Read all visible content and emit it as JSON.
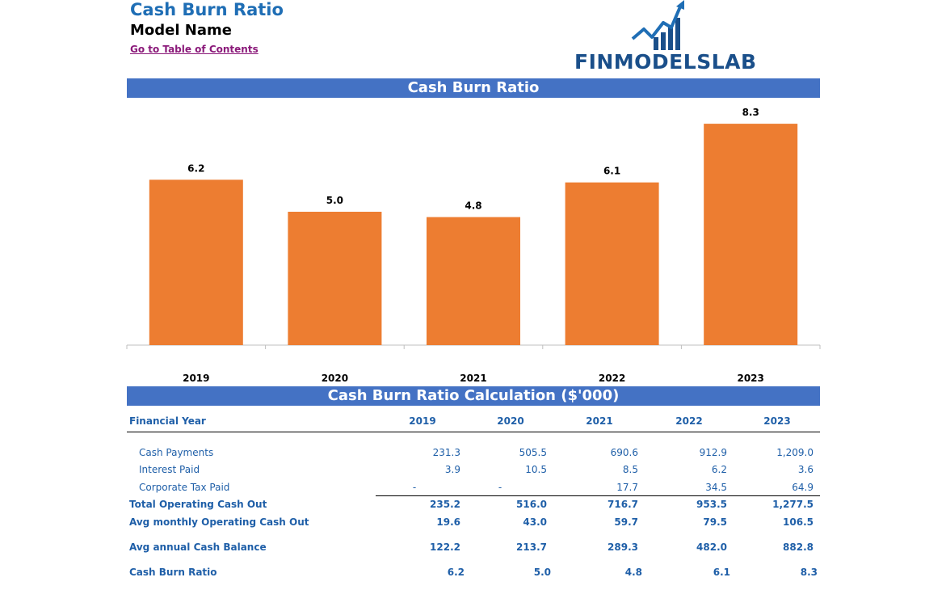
{
  "header": {
    "title": "Cash Burn Ratio",
    "model_name": "Model Name",
    "toc_link": "Go to Table of Contents",
    "logo_text": "FINMODELSLAB"
  },
  "colors": {
    "banner": "#4472c4",
    "bar": "#ed7d31",
    "heading_text": "#1f6eb5",
    "table_text": "#1f5fa8",
    "link": "#8b1a7a"
  },
  "chart_data": {
    "type": "bar",
    "title": "Cash Burn Ratio",
    "categories": [
      "2019",
      "2020",
      "2021",
      "2022",
      "2023"
    ],
    "values": [
      6.2,
      5.0,
      4.8,
      6.1,
      8.3
    ],
    "data_labels": [
      "6.2",
      "5.0",
      "4.8",
      "6.1",
      "8.3"
    ],
    "ylim": [
      0,
      9
    ],
    "grid": false,
    "legend": "none"
  },
  "table": {
    "title": "Cash Burn Ratio Calculation ($'000)",
    "header_label": "Financial Year",
    "years": [
      "2019",
      "2020",
      "2021",
      "2022",
      "2023"
    ],
    "rows": [
      {
        "label": "Cash Payments",
        "values": [
          "231.3",
          "505.5",
          "690.6",
          "912.9",
          "1,209.0"
        ]
      },
      {
        "label": "Interest Paid",
        "values": [
          "3.9",
          "10.5",
          "8.5",
          "6.2",
          "3.6"
        ]
      },
      {
        "label": "Corporate Tax Paid",
        "values": [
          "-",
          "-",
          "17.7",
          "34.5",
          "64.9"
        ]
      },
      {
        "label": "Total Operating Cash Out",
        "values": [
          "235.2",
          "516.0",
          "716.7",
          "953.5",
          "1,277.5"
        ]
      },
      {
        "label": "Avg monthly Operating Cash Out",
        "values": [
          "19.6",
          "43.0",
          "59.7",
          "79.5",
          "106.5"
        ]
      },
      {
        "label": "Avg annual Cash Balance",
        "values": [
          "122.2",
          "213.7",
          "289.3",
          "482.0",
          "882.8"
        ]
      },
      {
        "label": "Cash Burn Ratio",
        "values": [
          "6.2",
          "5.0",
          "4.8",
          "6.1",
          "8.3"
        ]
      }
    ]
  }
}
